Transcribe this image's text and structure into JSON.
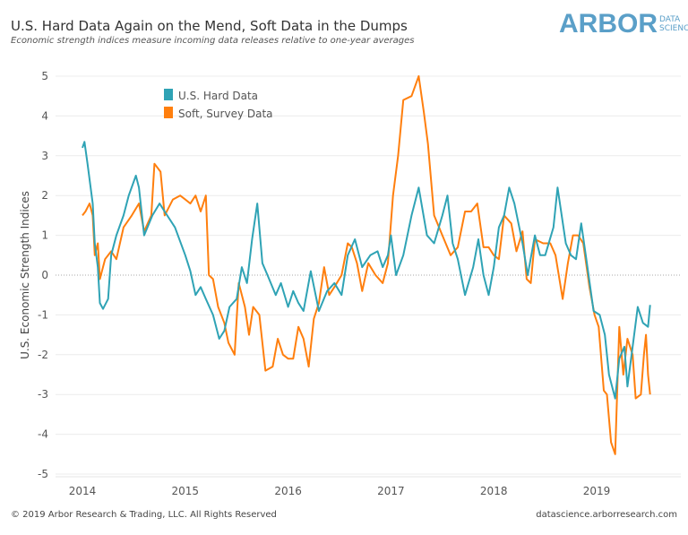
{
  "header": {
    "title": "U.S. Hard Data Again on the Mend, Soft Data in the Dumps",
    "subtitle": "Economic strength indices measure incoming data releases relative to one-year averages",
    "logo_main": "ARBOR",
    "logo_sub1": "DATA",
    "logo_sub2": "SCIENCE"
  },
  "footer": {
    "copyright": "© 2019 Arbor Research & Trading, LLC. All Rights Reserved",
    "website": "datascience.arborresearch.com"
  },
  "chart_data": {
    "type": "line",
    "title": "U.S. Hard Data Again on the Mend, Soft Data in the Dumps",
    "xlabel": "",
    "ylabel": "U.S. Economic Strength Indices",
    "xlim": [
      2014,
      2019.7
    ],
    "ylim": [
      -5.3,
      5.2
    ],
    "x_ticks": [
      "2014",
      "2015",
      "2016",
      "2017",
      "2018",
      "2019"
    ],
    "y_ticks": [
      5,
      4,
      3,
      2,
      1,
      0,
      -1,
      -2,
      -3,
      -4,
      -5
    ],
    "grid": "horizontal",
    "zero_line": "dotted",
    "legend": "top-left",
    "series": [
      {
        "name": "U.S. Hard Data",
        "color": "#2fa3b5",
        "x": [
          2014.0,
          2014.02,
          2014.05,
          2014.1,
          2014.12,
          2014.15,
          2014.17,
          2014.2,
          2014.25,
          2014.28,
          2014.33,
          2014.4,
          2014.45,
          2014.52,
          2014.55,
          2014.6,
          2014.68,
          2014.75,
          2014.8,
          2014.9,
          2015.0,
          2015.05,
          2015.1,
          2015.15,
          2015.2,
          2015.27,
          2015.33,
          2015.38,
          2015.43,
          2015.5,
          2015.55,
          2015.6,
          2015.65,
          2015.7,
          2015.75,
          2015.8,
          2015.88,
          2015.93,
          2016.0,
          2016.05,
          2016.1,
          2016.15,
          2016.22,
          2016.3,
          2016.38,
          2016.45,
          2016.52,
          2016.58,
          2016.65,
          2016.72,
          2016.8,
          2016.87,
          2016.92,
          2016.97,
          2017.0,
          2017.05,
          2017.12,
          2017.2,
          2017.27,
          2017.35,
          2017.42,
          2017.5,
          2017.55,
          2017.6,
          2017.65,
          2017.72,
          2017.8,
          2017.85,
          2017.9,
          2017.95,
          2018.0,
          2018.05,
          2018.1,
          2018.15,
          2018.2,
          2018.28,
          2018.33,
          2018.4,
          2018.45,
          2018.5,
          2018.58,
          2018.62,
          2018.7,
          2018.75,
          2018.8,
          2018.85,
          2018.9,
          2018.97,
          2019.03,
          2019.08,
          2019.12,
          2019.18,
          2019.22,
          2019.27,
          2019.3,
          2019.35,
          2019.4,
          2019.45,
          2019.5,
          2019.52
        ],
        "y": [
          3.2,
          3.35,
          2.8,
          1.8,
          0.8,
          0.2,
          -0.7,
          -0.85,
          -0.6,
          0.5,
          1.0,
          1.5,
          2.0,
          2.5,
          2.2,
          1.0,
          1.5,
          1.8,
          1.6,
          1.2,
          0.5,
          0.1,
          -0.5,
          -0.3,
          -0.6,
          -1.0,
          -1.6,
          -1.4,
          -0.8,
          -0.6,
          0.2,
          -0.2,
          0.9,
          1.8,
          0.3,
          0.0,
          -0.5,
          -0.2,
          -0.8,
          -0.4,
          -0.7,
          -0.9,
          0.1,
          -0.9,
          -0.4,
          -0.2,
          -0.5,
          0.5,
          0.9,
          0.2,
          0.5,
          0.6,
          0.2,
          0.5,
          1.0,
          0.0,
          0.5,
          1.5,
          2.2,
          1.0,
          0.8,
          1.5,
          2.0,
          0.8,
          0.4,
          -0.5,
          0.2,
          0.9,
          0.0,
          -0.5,
          0.2,
          1.2,
          1.5,
          2.2,
          1.8,
          0.8,
          0.0,
          1.0,
          0.5,
          0.5,
          1.2,
          2.2,
          0.8,
          0.5,
          0.4,
          1.3,
          0.4,
          -0.9,
          -1.0,
          -1.5,
          -2.5,
          -3.1,
          -2.1,
          -1.8,
          -2.8,
          -1.8,
          -0.8,
          -1.2,
          -1.3,
          -0.75
        ]
      },
      {
        "name": "Soft, Survey Data",
        "color": "#ff7f0e",
        "x": [
          2014.0,
          2014.03,
          2014.07,
          2014.1,
          2014.12,
          2014.15,
          2014.17,
          2014.22,
          2014.28,
          2014.33,
          2014.4,
          2014.48,
          2014.55,
          2014.6,
          2014.67,
          2014.7,
          2014.76,
          2014.8,
          2014.88,
          2014.95,
          2015.0,
          2015.05,
          2015.1,
          2015.15,
          2015.2,
          2015.23,
          2015.27,
          2015.32,
          2015.38,
          2015.42,
          2015.48,
          2015.52,
          2015.58,
          2015.62,
          2015.66,
          2015.72,
          2015.78,
          2015.85,
          2015.9,
          2015.95,
          2016.0,
          2016.05,
          2016.1,
          2016.15,
          2016.2,
          2016.25,
          2016.3,
          2016.35,
          2016.4,
          2016.45,
          2016.52,
          2016.58,
          2016.62,
          2016.67,
          2016.72,
          2016.78,
          2016.85,
          2016.92,
          2016.97,
          2017.02,
          2017.07,
          2017.12,
          2017.2,
          2017.27,
          2017.32,
          2017.36,
          2017.42,
          2017.5,
          2017.58,
          2017.65,
          2017.72,
          2017.78,
          2017.84,
          2017.9,
          2017.95,
          2018.0,
          2018.05,
          2018.1,
          2018.17,
          2018.22,
          2018.28,
          2018.32,
          2018.36,
          2018.4,
          2018.48,
          2018.55,
          2018.6,
          2018.67,
          2018.72,
          2018.77,
          2018.82,
          2018.87,
          2018.93,
          2018.98,
          2019.02,
          2019.07,
          2019.1,
          2019.14,
          2019.18,
          2019.22,
          2019.26,
          2019.3,
          2019.35,
          2019.38,
          2019.43,
          2019.46,
          2019.48,
          2019.5,
          2019.52
        ],
        "y": [
          1.5,
          1.6,
          1.8,
          1.5,
          0.5,
          0.8,
          -0.1,
          0.4,
          0.6,
          0.4,
          1.2,
          1.5,
          1.8,
          1.1,
          1.5,
          2.8,
          2.6,
          1.5,
          1.9,
          2.0,
          1.9,
          1.8,
          2.0,
          1.6,
          2.0,
          0.0,
          -0.1,
          -0.8,
          -1.2,
          -1.7,
          -2.0,
          -0.2,
          -0.8,
          -1.5,
          -0.8,
          -1.0,
          -2.4,
          -2.3,
          -1.6,
          -2.0,
          -2.1,
          -2.1,
          -1.3,
          -1.6,
          -2.3,
          -1.1,
          -0.7,
          0.2,
          -0.5,
          -0.3,
          0.0,
          0.8,
          0.7,
          0.3,
          -0.4,
          0.3,
          0.0,
          -0.2,
          0.3,
          2.0,
          3.0,
          4.4,
          4.5,
          5.0,
          4.1,
          3.3,
          1.5,
          1.0,
          0.5,
          0.7,
          1.6,
          1.6,
          1.8,
          0.7,
          0.7,
          0.5,
          0.4,
          1.5,
          1.3,
          0.6,
          1.1,
          -0.1,
          -0.2,
          0.9,
          0.8,
          0.8,
          0.5,
          -0.6,
          0.3,
          1.0,
          1.0,
          0.8,
          -0.3,
          -1.0,
          -1.3,
          -2.9,
          -3.0,
          -4.2,
          -4.5,
          -1.3,
          -2.5,
          -1.6,
          -2.0,
          -3.1,
          -3.0,
          -2.0,
          -1.5,
          -2.5,
          -3.0
        ]
      }
    ]
  }
}
